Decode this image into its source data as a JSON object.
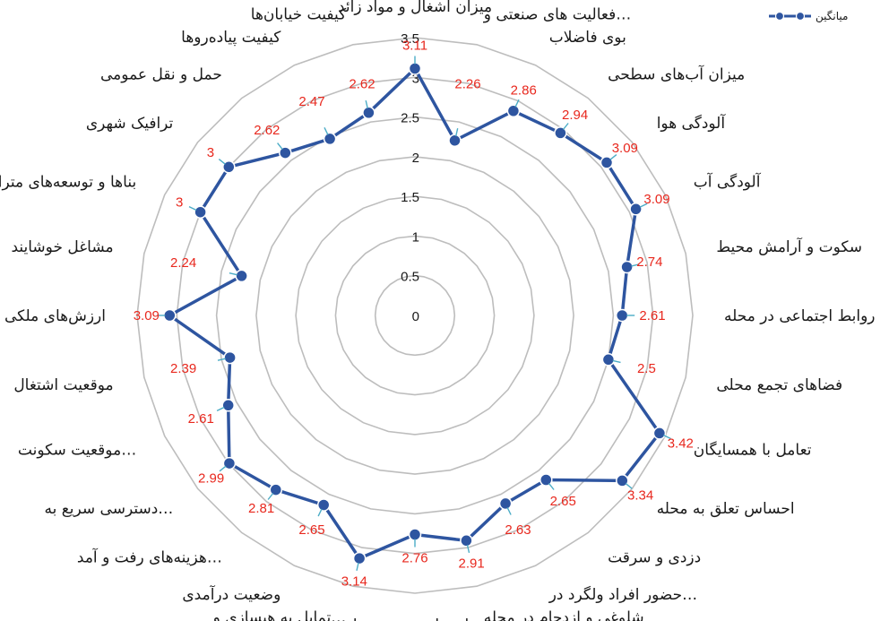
{
  "chart_data": {
    "type": "radar",
    "categories": [
      "میزان آشغال و مواد زائد",
      "فعالیت های صنعتی و…",
      "بوی فاضلاب",
      "میزان آب‌های سطحی",
      "آلودگی هوا",
      "آلودگی آب",
      "سکوت و آرامش محیط",
      "روابط اجتماعی در محله",
      "فضاهای تجمع محلی",
      "تعامل با همسایگان",
      "احساس تعلق به محله",
      "دزدی و سرقت",
      "حضور افراد ولگرد در…",
      "شلوغی و ازدحام در محله",
      "زیبایی‌های بصری محله",
      "تمایل به هبسازی و…",
      "وضعیت درآمدی",
      "هزینه‌های رفت و آمد…",
      "دسترسی سریع به…",
      "موقعیت سکونت…",
      "موقعیت اشتغال",
      "ارزش‌های ملکی",
      "مشاغل خوشایند",
      "بناها و توسعه‌های متراکم",
      "ترافیک شهری",
      "حمل و نقل عمومی",
      "کیفیت پیاده‌روها",
      "کیفیت خیابان‌ها"
    ],
    "series": [
      {
        "name": "میانگین",
        "values": [
          3.11,
          2.26,
          2.86,
          2.94,
          3.09,
          3.09,
          2.74,
          2.61,
          2.5,
          3.42,
          3.34,
          2.65,
          2.63,
          2.91,
          2.76,
          3.14,
          2.65,
          2.81,
          2.99,
          2.61,
          2.39,
          3.09,
          2.24,
          3,
          3,
          2.62,
          2.47,
          2.62
        ],
        "value_labels": [
          "3.11",
          "2.26",
          "2.86",
          "2.94",
          "3.09",
          "3.09",
          "2.74",
          "2.61",
          "2.5",
          "3.42",
          "3.34",
          "2.65",
          "2.63",
          "2.91",
          "2.76",
          "3.14",
          "2.65",
          "2.81",
          "2.99",
          "2.61",
          "2.39",
          "3.09",
          "2.24",
          "3",
          "3",
          "2.62",
          "2.47",
          "2.62"
        ]
      }
    ],
    "radial_ticks": [
      "0",
      "0.5",
      "1",
      "1.5",
      "2",
      "2.5",
      "3",
      "3.5"
    ],
    "rmax": 3.5,
    "grid": true,
    "legend_position": "top-right",
    "colors": {
      "series": "#2e55a0",
      "value_labels": "#e8281e",
      "grid": "#bdbdbd",
      "leader": "#4bacc6"
    }
  }
}
